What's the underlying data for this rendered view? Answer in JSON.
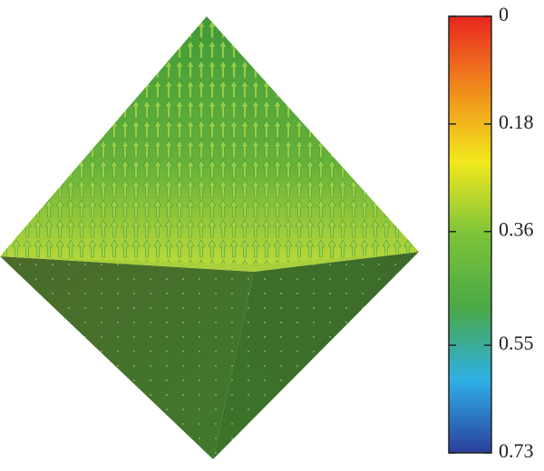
{
  "chart_data": {
    "type": "colorbar",
    "colorbar": {
      "lim": [
        0,
        0.73
      ],
      "ticks": [
        0,
        0.18,
        0.36,
        0.55,
        0.73
      ],
      "colors": [
        "#e8251f",
        "#f08a1c",
        "#f2e81d",
        "#7cc43a",
        "#4aa845",
        "#2eb0e6",
        "#2a3f9a"
      ]
    }
  }
}
